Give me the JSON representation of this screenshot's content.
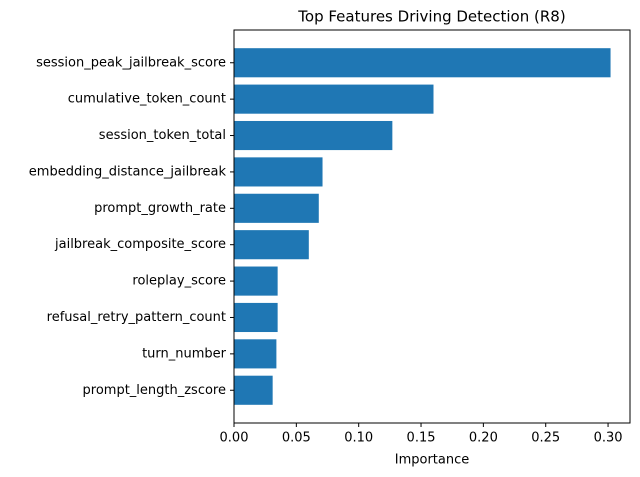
{
  "chart_data": {
    "type": "barh",
    "title": "Top Features Driving Detection (R8)",
    "xlabel": "Importance",
    "categories": [
      "session_peak_jailbreak_score",
      "cumulative_token_count",
      "session_token_total",
      "embedding_distance_jailbreak",
      "prompt_growth_rate",
      "jailbreak_composite_score",
      "roleplay_score",
      "refusal_retry_pattern_count",
      "turn_number",
      "prompt_length_zscore"
    ],
    "values": [
      0.302,
      0.16,
      0.127,
      0.071,
      0.068,
      0.06,
      0.035,
      0.035,
      0.034,
      0.031
    ],
    "color": "#1f77b4",
    "xlim": [
      0,
      0.3176
    ],
    "xticks": [
      {
        "value": 0,
        "label": "0.00"
      },
      0.05,
      {
        "value": 0.1,
        "label": "0.10"
      },
      0.15,
      {
        "value": 0.2,
        "label": "0.20"
      },
      0.25,
      {
        "value": 0.3,
        "label": "0.30"
      }
    ]
  }
}
